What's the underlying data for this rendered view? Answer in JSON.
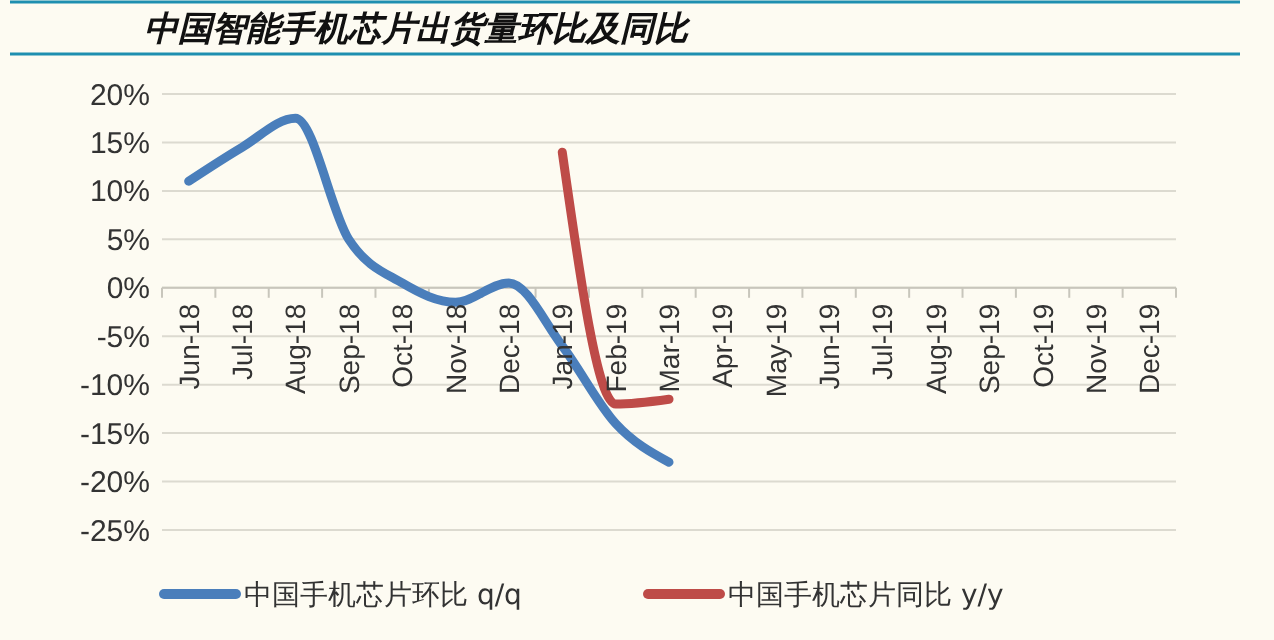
{
  "chart_data": {
    "type": "line",
    "title": "中国智能手机芯片出货量环比及同比",
    "categories": [
      "Jun-18",
      "Jul-18",
      "Aug-18",
      "Sep-18",
      "Oct-18",
      "Nov-18",
      "Dec-18",
      "Jan-19",
      "Feb-19",
      "Mar-19",
      "Apr-19",
      "May-19",
      "Jun-19",
      "Jul-19",
      "Aug-19",
      "Sep-19",
      "Oct-19",
      "Nov-19",
      "Dec-19"
    ],
    "series": [
      {
        "name": "中国手机芯片环比 q/q",
        "color": "#4a7ebb",
        "values": [
          11,
          14.5,
          17.5,
          5,
          0.5,
          -1.5,
          0.5,
          -6,
          -14,
          -18,
          null,
          null,
          null,
          null,
          null,
          null,
          null,
          null,
          null
        ]
      },
      {
        "name": "中国手机芯片同比 y/y",
        "color": "#be4b48",
        "values": [
          null,
          null,
          null,
          null,
          null,
          null,
          null,
          14,
          -12,
          -11.5,
          null,
          null,
          null,
          null,
          null,
          null,
          null,
          null,
          null
        ]
      }
    ],
    "ylim": [
      -25,
      20
    ],
    "yticks": [
      {
        "value": -25,
        "label": "-25%"
      },
      {
        "value": -20,
        "label": "-20%"
      },
      {
        "value": -15,
        "label": "-15%"
      },
      {
        "value": -10,
        "label": "-10%"
      },
      {
        "value": -5,
        "label": "-5%"
      },
      {
        "value": 0,
        "label": "0%"
      },
      {
        "value": 5,
        "label": "5%"
      },
      {
        "value": 10,
        "label": "10%"
      },
      {
        "value": 15,
        "label": "15%"
      },
      {
        "value": 20,
        "label": "20%"
      }
    ],
    "grid": "y",
    "legend": "bottom",
    "marker": "none",
    "line_style": "solid"
  }
}
